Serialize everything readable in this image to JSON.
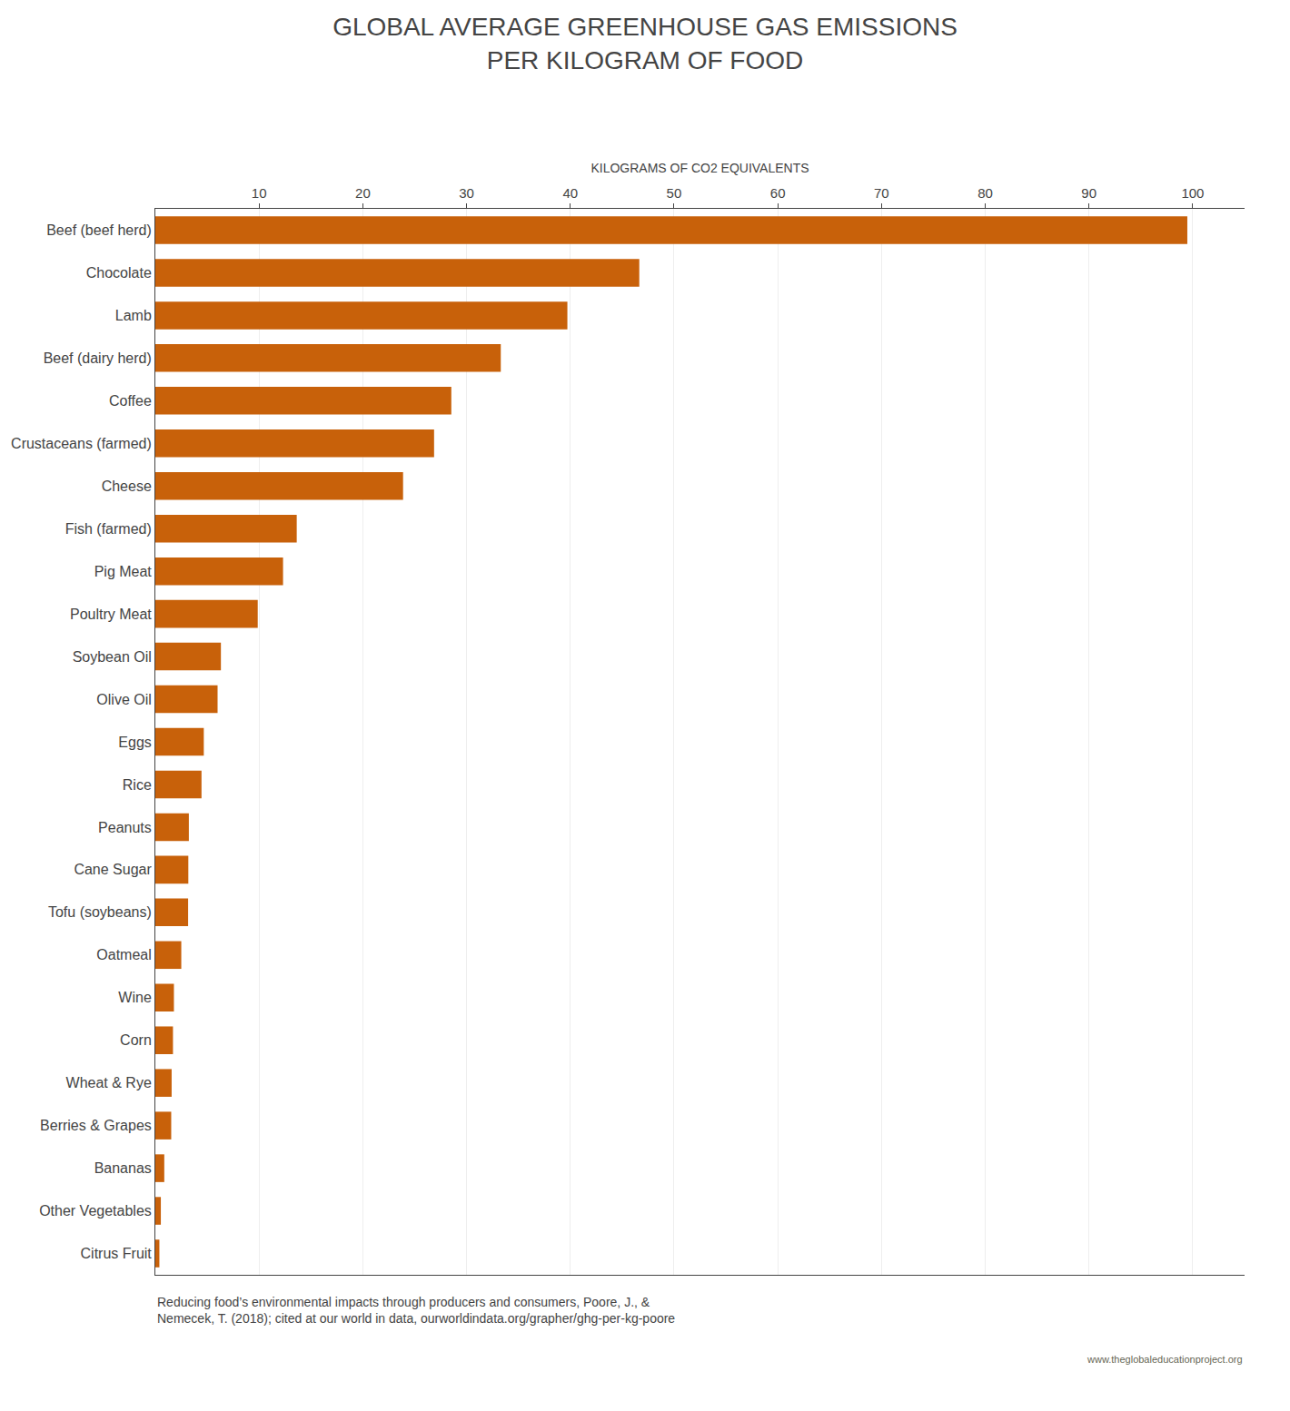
{
  "chart_data": {
    "type": "bar",
    "orientation": "horizontal",
    "title": "GLOBAL AVERAGE GREENHOUSE GAS EMISSIONS\nPER KILOGRAM OF FOOD",
    "x_label": "KILOGRAMS OF CO2 EQUIVALENTS",
    "categories": [
      "Beef (beef herd)",
      "Chocolate",
      "Lamb",
      "Beef (dairy herd)",
      "Coffee",
      "Crustaceans (farmed)",
      "Cheese",
      "Fish (farmed)",
      "Pig Meat",
      "Poultry Meat",
      "Soybean Oil",
      "Olive Oil",
      "Eggs",
      "Rice",
      "Peanuts",
      "Cane Sugar",
      "Tofu (soybeans)",
      "Oatmeal",
      "Wine",
      "Corn",
      "Wheat & Rye",
      "Berries & Grapes",
      "Bananas",
      "Other Vegetables",
      "Citrus Fruit"
    ],
    "values": [
      99.48,
      46.65,
      39.72,
      33.3,
      28.53,
      26.87,
      23.88,
      13.63,
      12.31,
      9.87,
      6.32,
      6.0,
      4.67,
      4.45,
      3.23,
      3.18,
      3.16,
      2.5,
      1.79,
      1.7,
      1.57,
      1.53,
      0.86,
      0.53,
      0.39
    ],
    "color": "#c8610a",
    "xlim": [
      0,
      105
    ],
    "xticks": [
      10,
      20,
      30,
      40,
      50,
      60,
      70,
      80,
      90,
      100
    ],
    "grid": true,
    "annotations": [
      "Reducing food’s environmental impacts through producers and consumers, Poore, J., &\nNemecek, T. (2018); cited at our world in data, ourworldindata.org/grapher/ghg-per-kg-poore",
      "www.theglobaleducationproject.org"
    ]
  }
}
